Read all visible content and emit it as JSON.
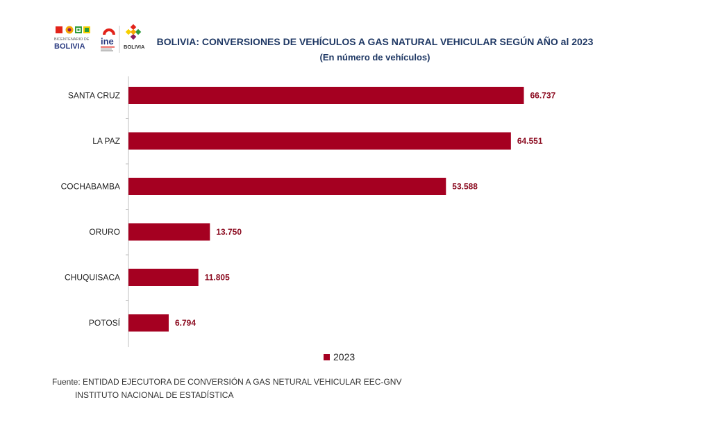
{
  "logos": {
    "bicentenario_line1": "BICENTENARIO DE",
    "bicentenario_line2": "BOLIVIA",
    "ine": "ine",
    "bolivia": "BOLIVIA"
  },
  "chart_data": {
    "type": "bar",
    "orientation": "horizontal",
    "title": "BOLIVIA: CONVERSIONES DE VEHÍCULOS A GAS NATURAL VEHICULAR SEGÚN AÑO al 2023",
    "subtitle": "(En número de vehículos)",
    "categories": [
      "SANTA CRUZ",
      "LA PAZ",
      "COCHABAMBA",
      "ORURO",
      "CHUQUISACA",
      "POTOSÍ"
    ],
    "series": [
      {
        "name": "2023",
        "values": [
          66737,
          64551,
          53588,
          13750,
          11805,
          6794
        ],
        "labels": [
          "66.737",
          "64.551",
          "53.588",
          "13.750",
          "11.805",
          "6.794"
        ]
      }
    ],
    "xlim": [
      0,
      75000
    ],
    "grid": false,
    "legend_position": "bottom",
    "bar_color": "#a50021"
  },
  "source": {
    "line1": "Fuente: ENTIDAD EJECUTORA DE CONVERSIÓN A GAS NETURAL VEHICULAR EEC-GNV",
    "line2": "INSTITUTO NACIONAL DE ESTADÍSTICA"
  }
}
